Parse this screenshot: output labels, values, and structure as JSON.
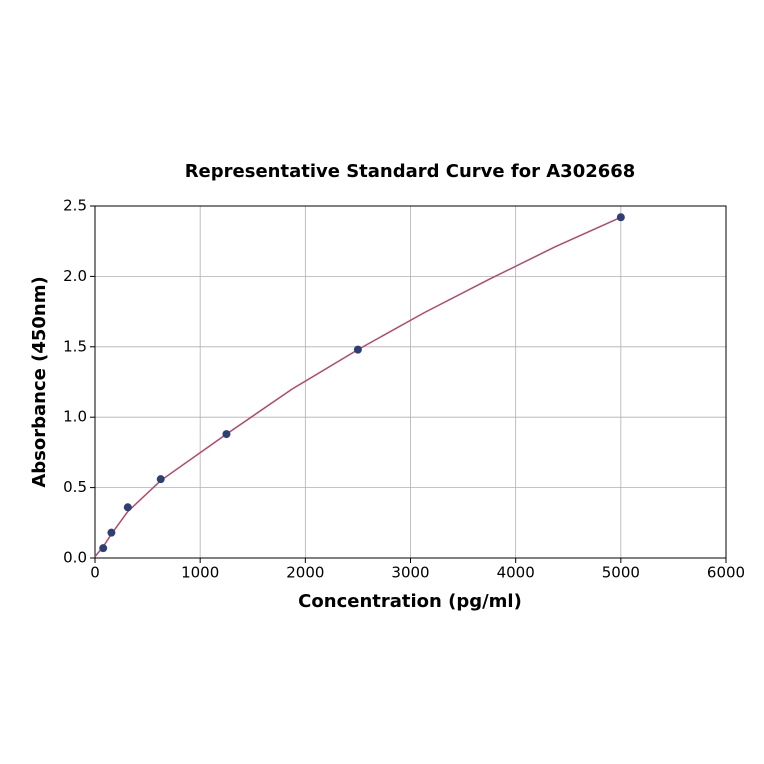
{
  "chart_data": {
    "type": "scatter",
    "title": "Representative Standard Curve for A302668",
    "x_label": "Concentration (pg/ml)",
    "y_label": "Absorbance (450nm)",
    "x": [
      78,
      156,
      312,
      625,
      1250,
      2500,
      5000
    ],
    "values": [
      0.07,
      0.18,
      0.36,
      0.56,
      0.88,
      1.48,
      2.42
    ],
    "color": "#2e3f73",
    "fit": {
      "color": "#b5476b",
      "x": [
        0,
        78,
        156,
        312,
        625,
        1250,
        1875,
        2500,
        3125,
        3750,
        4375,
        5000
      ],
      "values": [
        0.01,
        0.08,
        0.17,
        0.33,
        0.55,
        0.88,
        1.2,
        1.48,
        1.74,
        1.98,
        2.21,
        2.42
      ]
    },
    "xlim": [
      0,
      6000
    ],
    "xticks": [
      0,
      1000,
      2000,
      3000,
      4000,
      5000,
      6000
    ],
    "ylim": [
      0,
      2.5
    ],
    "yticks": [
      {
        "value": 0,
        "label": "0.0"
      },
      {
        "value": 0.5,
        "label": "0.5"
      },
      {
        "value": 1,
        "label": "1.0"
      },
      {
        "value": 1.5,
        "label": "1.5"
      },
      {
        "value": 2,
        "label": "2.0"
      },
      {
        "value": 2.5,
        "label": "2.5"
      }
    ],
    "grid": true
  }
}
